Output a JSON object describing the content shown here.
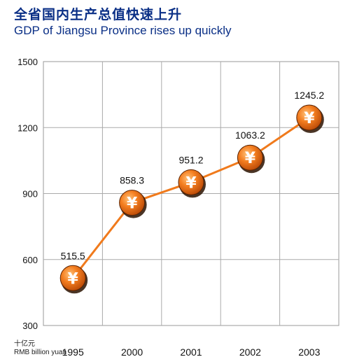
{
  "header": {
    "title_cn": "全省国内生产总值快速上升",
    "title_en": "GDP of Jiangsu Province rises up quickly"
  },
  "unit": {
    "cn": "十亿元",
    "en": "RMB billion yuan"
  },
  "colors": {
    "title": "#0a2f86",
    "line": "#f07a1c",
    "marker": "#f47e20",
    "grid": "#aaaaaa"
  },
  "chart_data": {
    "type": "line",
    "categories": [
      "1995",
      "2000",
      "2001",
      "2002",
      "2003"
    ],
    "series": [
      {
        "values": [
          515.5,
          858.3,
          951.2,
          1063.2,
          1245.2
        ],
        "labels": [
          "515.5",
          "858.3",
          "951.2",
          "1063.2",
          "1245.2"
        ],
        "marker_icon": "yen-coin-icon",
        "marker_symbol": "¥"
      }
    ],
    "yticks": [
      300,
      600,
      900,
      1200,
      1500
    ],
    "ylim": [
      300,
      1500
    ],
    "grid": true
  }
}
